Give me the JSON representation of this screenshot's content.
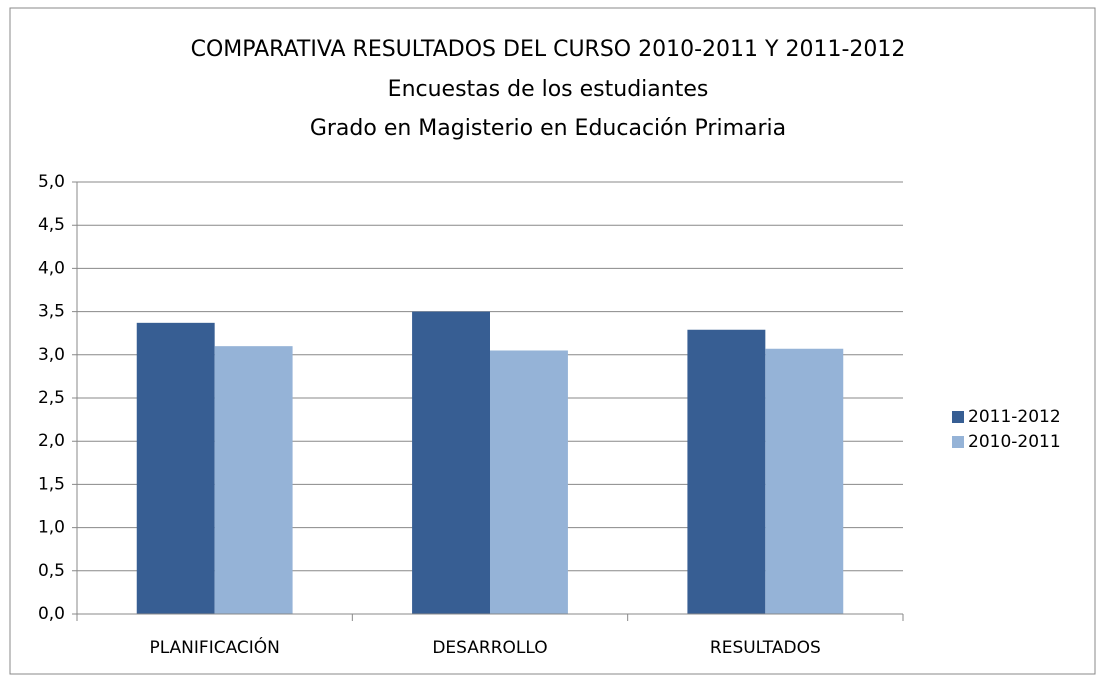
{
  "chart_data": {
    "type": "bar",
    "title": "COMPARATIVA RESULTADOS DEL CURSO 2010-2011 Y 2011-2012",
    "subtitle": [
      "Encuestas de los estudiantes",
      "Grado en Magisterio en Educación Primaria"
    ],
    "categories": [
      "PLANIFICACIÓN",
      "DESARROLLO",
      "RESULTADOS"
    ],
    "series": [
      {
        "name": "2011-2012",
        "color": "#375e93",
        "values": [
          3.37,
          3.5,
          3.29
        ]
      },
      {
        "name": "2010-2011",
        "color": "#95b3d7",
        "values": [
          3.1,
          3.05,
          3.07
        ]
      }
    ],
    "ylim": [
      0,
      5
    ],
    "yticks": [
      {
        "value": 0,
        "label": "0,0"
      },
      {
        "value": 0.5,
        "label": "0,5"
      },
      {
        "value": 1,
        "label": "1,0"
      },
      {
        "value": 1.5,
        "label": "1,5"
      },
      {
        "value": 2,
        "label": "2,0"
      },
      {
        "value": 2.5,
        "label": "2,5"
      },
      {
        "value": 3,
        "label": "3,0"
      },
      {
        "value": 3.5,
        "label": "3,5"
      },
      {
        "value": 4,
        "label": "4,0"
      },
      {
        "value": 4.5,
        "label": "4,5"
      },
      {
        "value": 5,
        "label": "5,0"
      }
    ],
    "grid": true,
    "legend": "right"
  }
}
